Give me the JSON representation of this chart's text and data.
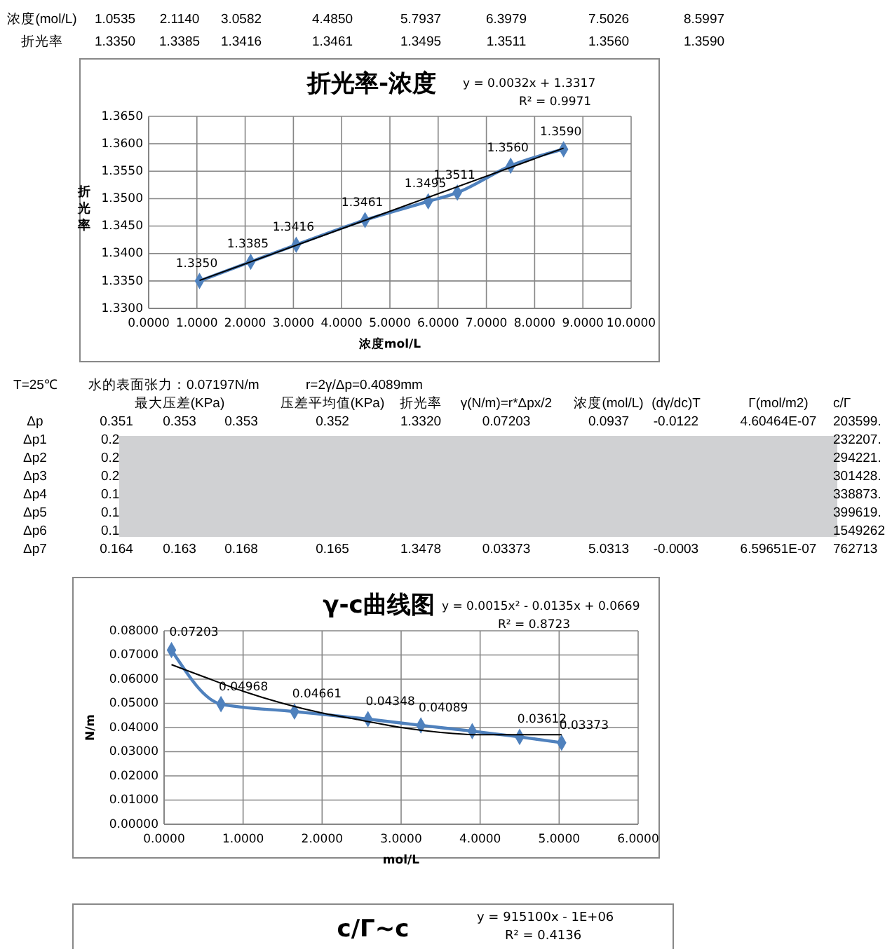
{
  "chart_data": [
    {
      "type": "other",
      "annotations": [
        "浓度(mol/L)",
        "1.0535",
        "2.1140",
        "3.0582",
        "4.4850",
        "5.7937",
        "6.3979",
        "7.5026",
        "8.5997",
        "折光率",
        "1.3350",
        "1.3385",
        "1.3416",
        "1.3461",
        "1.3495",
        "1.3511",
        "1.3560",
        "1.3590"
      ]
    },
    {
      "type": "line",
      "title": "折光率-浓度",
      "xlabel": "浓度mol/L",
      "ylabel": "折光率",
      "annotations": [
        "y = 0.0032x + 1.3317",
        "R² = 0.9971"
      ],
      "marker": "diamond",
      "grid": true,
      "xlim": [
        0,
        10
      ],
      "xticks": [
        {
          "value": 0,
          "label": "0.0000"
        },
        {
          "value": 1,
          "label": "1.0000"
        },
        {
          "value": 2,
          "label": "2.0000"
        },
        {
          "value": 3,
          "label": "3.0000"
        },
        {
          "value": 4,
          "label": "4.0000"
        },
        {
          "value": 5,
          "label": "5.0000"
        },
        {
          "value": 6,
          "label": "6.0000"
        },
        {
          "value": 7,
          "label": "7.0000"
        },
        {
          "value": 8,
          "label": "8.0000"
        },
        {
          "value": 9,
          "label": "9.0000"
        },
        {
          "value": 10,
          "label": "10.0000"
        }
      ],
      "ylim": [
        1.33,
        1.365
      ],
      "yticks": [
        {
          "value": 1.33,
          "label": "1.3300"
        },
        {
          "value": 1.335,
          "label": "1.3350"
        },
        {
          "value": 1.34,
          "label": "1.3400"
        },
        {
          "value": 1.345,
          "label": "1.3450"
        },
        {
          "value": 1.35,
          "label": "1.3500"
        },
        {
          "value": 1.355,
          "label": "1.3550"
        },
        {
          "value": 1.36,
          "label": "1.3600"
        },
        {
          "value": 1.365,
          "label": "1.3650"
        }
      ],
      "series": [
        {
          "color": "#4f81bd",
          "x": [
            1.0535,
            2.114,
            3.0582,
            4.485,
            5.7937,
            6.3979,
            7.5026,
            8.5997
          ],
          "values": [
            1.335,
            1.3385,
            1.3416,
            1.3461,
            1.3495,
            1.3511,
            1.356,
            1.359
          ],
          "value_labels": [
            "1.3350",
            "1.3385",
            "1.3416",
            "1.3461",
            "1.3495",
            "1.3511",
            "1.3560",
            "1.3590"
          ]
        },
        {
          "type": "line",
          "color": "#000000",
          "marker": "none",
          "x": [
            1.0535,
            8.5997
          ],
          "values": [
            1.3351,
            1.3592
          ]
        }
      ]
    },
    {
      "type": "other",
      "annotations": [
        "T=25℃",
        "水的表面张力：0.07197N/m",
        "r=2γ/Δp=0.4089mm",
        "最大压差(KPa)",
        "压差平均值(KPa)",
        "折光率",
        "γ(N/m)=r*Δpx/2",
        "浓度(mol/L)",
        "(dγ/dc)T",
        "Γ(mol/m2)",
        "c/Γ",
        "Δp",
        "0.351",
        "0.353",
        "0.353",
        "0.352",
        "1.3320",
        "0.07203",
        "0.0937",
        "-0.0122",
        "4.60464E-07",
        "203599.",
        "Δp1",
        "0.2",
        "232207.",
        "Δp2",
        "0.2",
        "294221.",
        "Δp3",
        "0.2",
        "301428.",
        "Δp4",
        "0.1",
        "338873.",
        "Δp5",
        "0.1",
        "399619.",
        "Δp6",
        "0.1",
        "1549262",
        "Δp7",
        "0.164",
        "0.163",
        "0.168",
        "0.165",
        "1.3478",
        "0.03373",
        "5.0313",
        "-0.0003",
        "6.59651E-07",
        "762713"
      ]
    },
    {
      "type": "line",
      "title": "γ-c曲线图",
      "xlabel": "mol/L",
      "ylabel": "N/m",
      "annotations": [
        "y = 0.0015x² - 0.0135x + 0.0669",
        "R² = 0.8723"
      ],
      "marker": "diamond",
      "grid": true,
      "xlim": [
        0,
        6
      ],
      "xticks": [
        {
          "value": 0,
          "label": "0.0000"
        },
        {
          "value": 1,
          "label": "1.0000"
        },
        {
          "value": 2,
          "label": "2.0000"
        },
        {
          "value": 3,
          "label": "3.0000"
        },
        {
          "value": 4,
          "label": "4.0000"
        },
        {
          "value": 5,
          "label": "5.0000"
        },
        {
          "value": 6,
          "label": "6.0000"
        }
      ],
      "ylim": [
        0,
        0.08
      ],
      "yticks": [
        {
          "value": 0,
          "label": "0.00000"
        },
        {
          "value": 0.01,
          "label": "0.01000"
        },
        {
          "value": 0.02,
          "label": "0.02000"
        },
        {
          "value": 0.03,
          "label": "0.03000"
        },
        {
          "value": 0.04,
          "label": "0.04000"
        },
        {
          "value": 0.05,
          "label": "0.05000"
        },
        {
          "value": 0.06,
          "label": "0.06000"
        },
        {
          "value": 0.07,
          "label": "0.07000"
        },
        {
          "value": 0.08,
          "label": "0.08000"
        }
      ],
      "series": [
        {
          "color": "#4f81bd",
          "x": [
            0.0937,
            0.72,
            1.65,
            2.58,
            3.25,
            3.9,
            4.5,
            5.0313
          ],
          "values": [
            0.07203,
            0.04968,
            0.04661,
            0.04348,
            0.04089,
            0.0385,
            0.03612,
            0.03373
          ],
          "value_labels": [
            "0.07203",
            "0.04968",
            "0.04661",
            "0.04348",
            "0.04089",
            null,
            "0.03612",
            "0.03373"
          ]
        },
        {
          "type": "line",
          "color": "#000000",
          "marker": "none",
          "x": [
            0.0937,
            0.5,
            1,
            1.5,
            2,
            2.5,
            3,
            3.5,
            4,
            4.5,
            5.0313
          ],
          "values": [
            0.066,
            0.061,
            0.055,
            0.05,
            0.046,
            0.043,
            0.04,
            0.038,
            0.037,
            0.037,
            0.037
          ]
        }
      ]
    },
    {
      "type": "other",
      "title": "c/Γ~c",
      "annotations": [
        "y = 915100x - 1E+06",
        "R² = 0.4136"
      ]
    }
  ]
}
